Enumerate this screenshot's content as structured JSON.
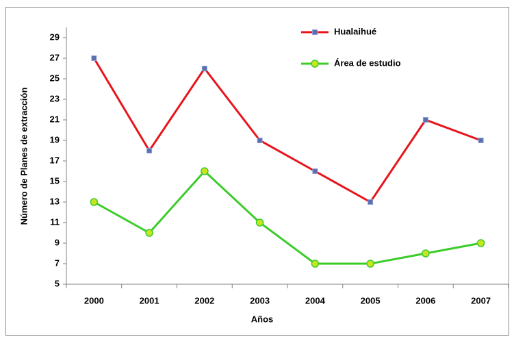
{
  "chart_data": {
    "type": "line",
    "y_label": "Número  de Planes de extracción",
    "x_label": "Años",
    "categories": [
      "2000",
      "2001",
      "2002",
      "2003",
      "2004",
      "2005",
      "2006",
      "2007"
    ],
    "series": [
      {
        "name": "Hualaihué",
        "color": "#e8141b",
        "marker_color": "#5a6fb0",
        "marker": "square",
        "values": [
          27,
          18,
          26,
          19,
          16,
          13,
          21,
          19
        ]
      },
      {
        "name": "Área de estudio",
        "color": "#3ccc2a",
        "marker_color": "#c8e61e",
        "marker": "circle",
        "values": [
          13,
          10,
          16,
          11,
          7,
          7,
          8,
          9
        ]
      }
    ],
    "ylim": [
      5,
      30
    ],
    "yticks": [
      5,
      7,
      9,
      11,
      13,
      15,
      17,
      19,
      21,
      23,
      25,
      27,
      29
    ],
    "grid": false,
    "legend": "top-right"
  }
}
